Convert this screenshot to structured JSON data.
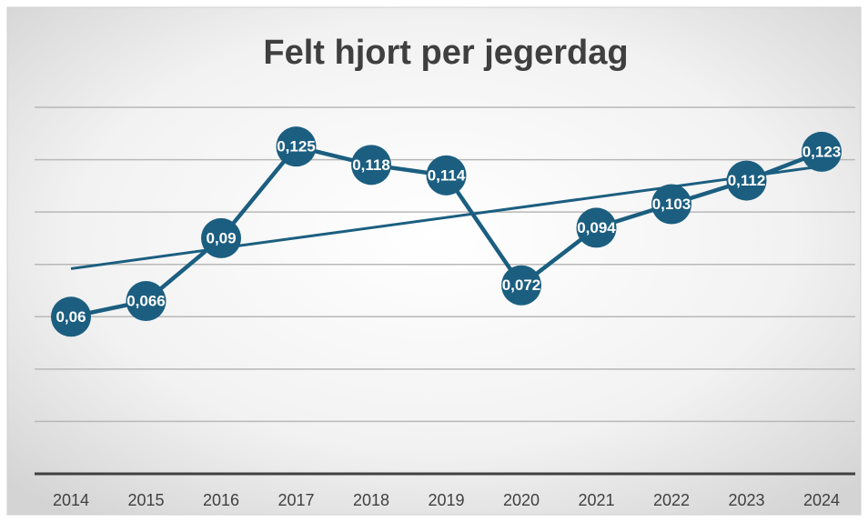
{
  "chart_data": {
    "type": "line",
    "title": "Felt hjort per jegerdag",
    "categories": [
      "2014",
      "2015",
      "2016",
      "2017",
      "2018",
      "2019",
      "2020",
      "2021",
      "2022",
      "2023",
      "2024"
    ],
    "series": [
      {
        "name": "Felt hjort per jegerdag",
        "color": "#1b5e80",
        "values": [
          0.06,
          0.066,
          0.09,
          0.125,
          0.118,
          0.114,
          0.072,
          0.094,
          0.103,
          0.112,
          0.123
        ],
        "value_labels": [
          "0,06",
          "0,066",
          "0,09",
          "0,125",
          "0,118",
          "0,114",
          "0,072",
          "0,094",
          "0,103",
          "0,112",
          "0,123"
        ]
      }
    ],
    "ylim": [
      0,
      0.14
    ],
    "yticks": [
      0,
      0.02,
      0.04,
      0.06,
      0.08,
      0.1,
      0.12,
      0.14
    ],
    "grid": true,
    "trendline": true
  }
}
